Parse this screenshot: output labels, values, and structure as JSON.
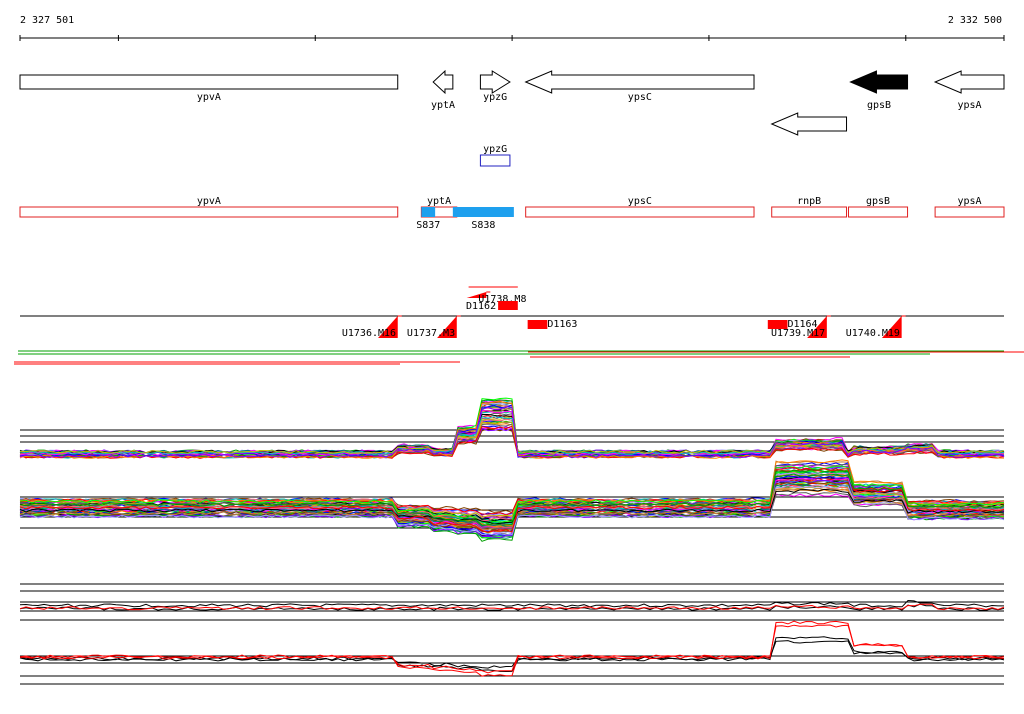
{
  "axis": {
    "start_label": "2 327 501",
    "end_label": "2 332 500",
    "start": 2327501,
    "end": 2332500,
    "ticks": [
      2328001,
      2329001,
      2330001,
      2331001,
      2332001
    ]
  },
  "genes": [
    {
      "name": "ypvA",
      "start": 2327501,
      "end": 2329420,
      "strand": "+",
      "row": 0,
      "filled": false,
      "show_label": true
    },
    {
      "name": "yptA",
      "start": 2329600,
      "end": 2329700,
      "strand": "-",
      "row": 0,
      "filled": false,
      "show_label": true
    },
    {
      "name": "ypzG",
      "start": 2329840,
      "end": 2329990,
      "strand": "+",
      "row": 0,
      "filled": false,
      "show_label": true
    },
    {
      "name": "ypsC",
      "start": 2330070,
      "end": 2331230,
      "strand": "-",
      "row": 0,
      "filled": false,
      "show_label": true
    },
    {
      "name": "gpsB",
      "start": 2331720,
      "end": 2332010,
      "strand": "-",
      "row": 0,
      "filled": true,
      "show_label": true
    },
    {
      "name": "ypsA",
      "start": 2332150,
      "end": 2332500,
      "strand": "-",
      "row": 0,
      "filled": false,
      "show_label": true
    },
    {
      "name": "",
      "start": 2331320,
      "end": 2331700,
      "strand": "-",
      "row": 1,
      "filled": false,
      "show_label": false
    }
  ],
  "small_feature": {
    "name": "ypzG",
    "start": 2329840,
    "end": 2329990
  },
  "transcripts": [
    {
      "name": "ypvA",
      "start": 2327501,
      "end": 2329420
    },
    {
      "name": "yptA",
      "start": 2329540,
      "end": 2329720
    },
    {
      "name": "ypsC",
      "start": 2330070,
      "end": 2331230
    },
    {
      "name": "rnpB",
      "start": 2331320,
      "end": 2331700
    },
    {
      "name": "gpsB",
      "start": 2331710,
      "end": 2332010
    },
    {
      "name": "ypsA",
      "start": 2332150,
      "end": 2332500
    }
  ],
  "segments": [
    {
      "name": "S837",
      "start": 2329540,
      "end": 2329610
    },
    {
      "name": "S838",
      "start": 2329700,
      "end": 2330010
    }
  ],
  "sites": {
    "downshifts": [
      {
        "name": "D1162",
        "start": 2329930,
        "end": 2330030,
        "label_side": "left",
        "level": "upper"
      },
      {
        "name": "D1163",
        "start": 2330080,
        "end": 2330180,
        "label_side": "right",
        "level": "lower"
      },
      {
        "name": "D1164",
        "start": 2331300,
        "end": 2331400,
        "label_side": "right",
        "level": "lower"
      }
    ],
    "upshifts": [
      {
        "name": "U1736.M16",
        "start": 2329320,
        "end": 2329420,
        "label_side": "left"
      },
      {
        "name": "U1737.M3",
        "start": 2329620,
        "end": 2329720,
        "label_side": "left"
      },
      {
        "name": "U1738.M8",
        "start": 2329770,
        "end": 2329870,
        "label_side": "right",
        "level": "top"
      },
      {
        "name": "U1739.M17",
        "start": 2331500,
        "end": 2331600,
        "label_side": "left"
      },
      {
        "name": "U1740.M19",
        "start": 2331880,
        "end": 2331980,
        "label_side": "left"
      }
    ]
  },
  "profile_breaks": [
    2329420,
    2329600,
    2329700,
    2329820,
    2330030,
    2330080,
    2331230,
    2331320,
    2331700,
    2331710,
    2332010,
    2332150
  ],
  "colors": {
    "gene_outline": "#000000",
    "gene_filled": "#000000",
    "transcript_outline": "#e02020",
    "segment_fill": "#1ea0ee",
    "site_fill": "#ff0000",
    "small_feature_outline": "#2020c0",
    "profile_palette": [
      "#ff0000",
      "#00a000",
      "#0000ff",
      "#ff00ff",
      "#00c0c0",
      "#c0c000",
      "#ff8000",
      "#8000ff",
      "#804000",
      "#008080",
      "#ff6080",
      "#606060",
      "#00ff00",
      "#a0a0ff",
      "#c08040",
      "#000000"
    ]
  }
}
